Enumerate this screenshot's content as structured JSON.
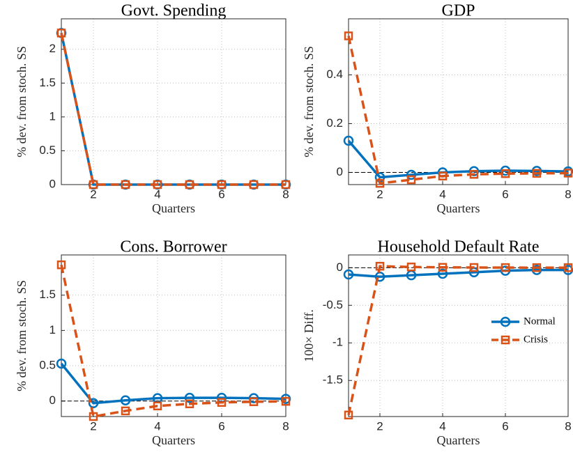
{
  "chart_data": [
    {
      "type": "line",
      "title": "Govt. Spending",
      "xlabel": "Quarters",
      "ylabel": "% dev. from stoch. SS",
      "x": [
        1,
        2,
        3,
        4,
        5,
        6,
        7,
        8
      ],
      "xlim": [
        1,
        8
      ],
      "xticks": [
        2,
        4,
        6,
        8
      ],
      "ylim": [
        0,
        2.45
      ],
      "yticks": [
        0,
        0.5,
        1,
        1.5,
        2
      ],
      "grid": true,
      "series": [
        {
          "name": "Normal",
          "color": "#0072BD",
          "style": "solid",
          "marker": "circle",
          "values": [
            2.24,
            0,
            0,
            0,
            0,
            0,
            0,
            0
          ]
        },
        {
          "name": "Crisis",
          "color": "#D95319",
          "style": "dashed",
          "marker": "square",
          "values": [
            2.24,
            0,
            0,
            0,
            0,
            0,
            0,
            0
          ]
        }
      ]
    },
    {
      "type": "line",
      "title": "GDP",
      "xlabel": "Quarters",
      "ylabel": "% dev. from stoch. SS",
      "x": [
        1,
        2,
        3,
        4,
        5,
        6,
        7,
        8
      ],
      "xlim": [
        1,
        8
      ],
      "xticks": [
        2,
        4,
        6,
        8
      ],
      "ylim": [
        -0.05,
        0.63
      ],
      "yticks": [
        0,
        0.2,
        0.4
      ],
      "grid": true,
      "series": [
        {
          "name": "Normal",
          "color": "#0072BD",
          "style": "solid",
          "marker": "circle",
          "values": [
            0.13,
            -0.02,
            -0.01,
            0.0,
            0.005,
            0.007,
            0.006,
            0.004
          ]
        },
        {
          "name": "Crisis",
          "color": "#D95319",
          "style": "dashed",
          "marker": "square",
          "values": [
            0.56,
            -0.045,
            -0.03,
            -0.015,
            -0.008,
            -0.005,
            -0.004,
            -0.003
          ]
        }
      ]
    },
    {
      "type": "line",
      "title": "Cons. Borrower",
      "xlabel": "Quarters",
      "ylabel": "% dev. from stoch. SS",
      "x": [
        1,
        2,
        3,
        4,
        5,
        6,
        7,
        8
      ],
      "xlim": [
        1,
        8
      ],
      "xticks": [
        2,
        4,
        6,
        8
      ],
      "ylim": [
        -0.22,
        2.07
      ],
      "yticks": [
        0,
        0.5,
        1,
        1.5
      ],
      "grid": true,
      "series": [
        {
          "name": "Normal",
          "color": "#0072BD",
          "style": "solid",
          "marker": "circle",
          "values": [
            0.53,
            -0.03,
            0.01,
            0.04,
            0.045,
            0.045,
            0.04,
            0.03
          ]
        },
        {
          "name": "Crisis",
          "color": "#D95319",
          "style": "dashed",
          "marker": "square",
          "values": [
            1.93,
            -0.22,
            -0.14,
            -0.07,
            -0.04,
            -0.02,
            -0.01,
            -0.005
          ]
        }
      ]
    },
    {
      "type": "line",
      "title": "Household Default Rate",
      "xlabel": "Quarters",
      "ylabel": "100× Diff.",
      "x": [
        1,
        2,
        3,
        4,
        5,
        6,
        7,
        8
      ],
      "xlim": [
        1,
        8
      ],
      "xticks": [
        2,
        4,
        6,
        8
      ],
      "ylim": [
        -1.98,
        0.17
      ],
      "yticks": [
        -1.5,
        -1,
        -0.5,
        0
      ],
      "grid": true,
      "legend": "east",
      "series": [
        {
          "name": "Normal",
          "color": "#0072BD",
          "style": "solid",
          "marker": "circle",
          "values": [
            -0.09,
            -0.12,
            -0.1,
            -0.08,
            -0.06,
            -0.04,
            -0.03,
            -0.03
          ]
        },
        {
          "name": "Crisis",
          "color": "#D95319",
          "style": "dashed",
          "marker": "square",
          "values": [
            -1.96,
            0.02,
            0.01,
            0.005,
            0.003,
            0.002,
            0.001,
            0.001
          ]
        }
      ]
    }
  ]
}
